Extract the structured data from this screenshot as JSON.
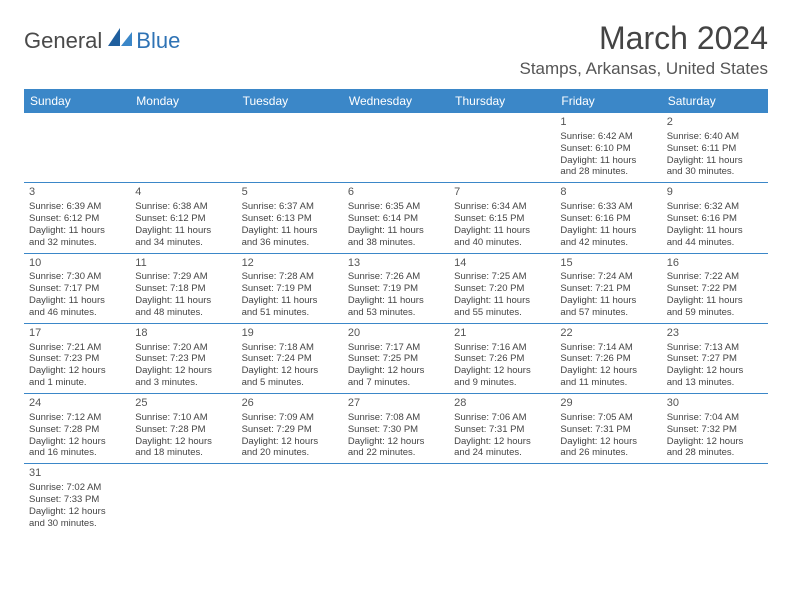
{
  "logo": {
    "text1": "General",
    "text2": "Blue"
  },
  "title": "March 2024",
  "location": "Stamps, Arkansas, United States",
  "weekdays": [
    "Sunday",
    "Monday",
    "Tuesday",
    "Wednesday",
    "Thursday",
    "Friday",
    "Saturday"
  ],
  "colors": {
    "header_bg": "#3b87c8",
    "header_text": "#ffffff",
    "logo_blue": "#2f73b5",
    "text": "#444444",
    "divider": "#3b87c8"
  },
  "weeks": [
    [
      null,
      null,
      null,
      null,
      null,
      {
        "n": "1",
        "sr": "6:42 AM",
        "ss": "6:10 PM",
        "dl": "11 hours and 28 minutes."
      },
      {
        "n": "2",
        "sr": "6:40 AM",
        "ss": "6:11 PM",
        "dl": "11 hours and 30 minutes."
      }
    ],
    [
      {
        "n": "3",
        "sr": "6:39 AM",
        "ss": "6:12 PM",
        "dl": "11 hours and 32 minutes."
      },
      {
        "n": "4",
        "sr": "6:38 AM",
        "ss": "6:12 PM",
        "dl": "11 hours and 34 minutes."
      },
      {
        "n": "5",
        "sr": "6:37 AM",
        "ss": "6:13 PM",
        "dl": "11 hours and 36 minutes."
      },
      {
        "n": "6",
        "sr": "6:35 AM",
        "ss": "6:14 PM",
        "dl": "11 hours and 38 minutes."
      },
      {
        "n": "7",
        "sr": "6:34 AM",
        "ss": "6:15 PM",
        "dl": "11 hours and 40 minutes."
      },
      {
        "n": "8",
        "sr": "6:33 AM",
        "ss": "6:16 PM",
        "dl": "11 hours and 42 minutes."
      },
      {
        "n": "9",
        "sr": "6:32 AM",
        "ss": "6:16 PM",
        "dl": "11 hours and 44 minutes."
      }
    ],
    [
      {
        "n": "10",
        "sr": "7:30 AM",
        "ss": "7:17 PM",
        "dl": "11 hours and 46 minutes."
      },
      {
        "n": "11",
        "sr": "7:29 AM",
        "ss": "7:18 PM",
        "dl": "11 hours and 48 minutes."
      },
      {
        "n": "12",
        "sr": "7:28 AM",
        "ss": "7:19 PM",
        "dl": "11 hours and 51 minutes."
      },
      {
        "n": "13",
        "sr": "7:26 AM",
        "ss": "7:19 PM",
        "dl": "11 hours and 53 minutes."
      },
      {
        "n": "14",
        "sr": "7:25 AM",
        "ss": "7:20 PM",
        "dl": "11 hours and 55 minutes."
      },
      {
        "n": "15",
        "sr": "7:24 AM",
        "ss": "7:21 PM",
        "dl": "11 hours and 57 minutes."
      },
      {
        "n": "16",
        "sr": "7:22 AM",
        "ss": "7:22 PM",
        "dl": "11 hours and 59 minutes."
      }
    ],
    [
      {
        "n": "17",
        "sr": "7:21 AM",
        "ss": "7:23 PM",
        "dl": "12 hours and 1 minute."
      },
      {
        "n": "18",
        "sr": "7:20 AM",
        "ss": "7:23 PM",
        "dl": "12 hours and 3 minutes."
      },
      {
        "n": "19",
        "sr": "7:18 AM",
        "ss": "7:24 PM",
        "dl": "12 hours and 5 minutes."
      },
      {
        "n": "20",
        "sr": "7:17 AM",
        "ss": "7:25 PM",
        "dl": "12 hours and 7 minutes."
      },
      {
        "n": "21",
        "sr": "7:16 AM",
        "ss": "7:26 PM",
        "dl": "12 hours and 9 minutes."
      },
      {
        "n": "22",
        "sr": "7:14 AM",
        "ss": "7:26 PM",
        "dl": "12 hours and 11 minutes."
      },
      {
        "n": "23",
        "sr": "7:13 AM",
        "ss": "7:27 PM",
        "dl": "12 hours and 13 minutes."
      }
    ],
    [
      {
        "n": "24",
        "sr": "7:12 AM",
        "ss": "7:28 PM",
        "dl": "12 hours and 16 minutes."
      },
      {
        "n": "25",
        "sr": "7:10 AM",
        "ss": "7:28 PM",
        "dl": "12 hours and 18 minutes."
      },
      {
        "n": "26",
        "sr": "7:09 AM",
        "ss": "7:29 PM",
        "dl": "12 hours and 20 minutes."
      },
      {
        "n": "27",
        "sr": "7:08 AM",
        "ss": "7:30 PM",
        "dl": "12 hours and 22 minutes."
      },
      {
        "n": "28",
        "sr": "7:06 AM",
        "ss": "7:31 PM",
        "dl": "12 hours and 24 minutes."
      },
      {
        "n": "29",
        "sr": "7:05 AM",
        "ss": "7:31 PM",
        "dl": "12 hours and 26 minutes."
      },
      {
        "n": "30",
        "sr": "7:04 AM",
        "ss": "7:32 PM",
        "dl": "12 hours and 28 minutes."
      }
    ],
    [
      {
        "n": "31",
        "sr": "7:02 AM",
        "ss": "7:33 PM",
        "dl": "12 hours and 30 minutes."
      },
      null,
      null,
      null,
      null,
      null,
      null
    ]
  ],
  "labels": {
    "sunrise_prefix": "Sunrise: ",
    "sunset_prefix": "Sunset: ",
    "daylight_prefix": "Daylight: "
  }
}
